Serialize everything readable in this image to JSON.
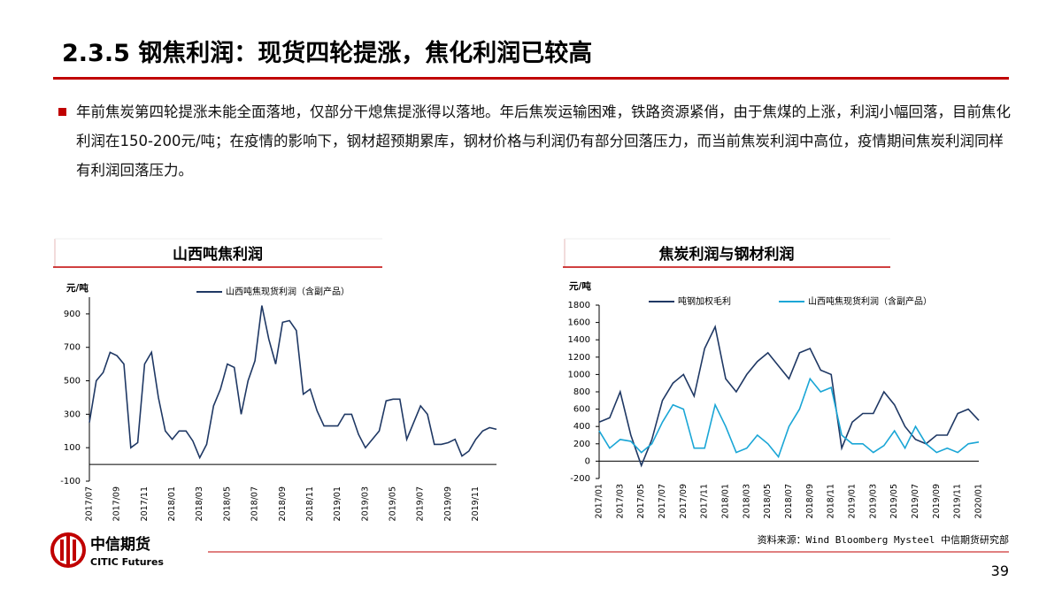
{
  "header": {
    "title": "2.3.5 钢焦利润：现货四轮提涨，焦化利润已较高"
  },
  "bullet": {
    "text": "年前焦炭第四轮提涨未能全面落地，仅部分干熄焦提涨得以落地。年后焦炭运输困难，铁路资源紧俏，由于焦煤的上涨，利润小幅回落，目前焦化利润在150-200元/吨；在疫情的影响下，钢材超预期累库，钢材价格与利润仍有部分回落压力，而当前焦炭利润中高位，疫情期间焦炭利润同样有利润回落压力。"
  },
  "chart_data": [
    {
      "type": "line",
      "title": "山西吨焦利润",
      "y_label": "元/吨",
      "categories": [
        "2017/07",
        null,
        null,
        null,
        "2017/09",
        null,
        null,
        null,
        "2017/11",
        null,
        null,
        null,
        "2018/01",
        null,
        null,
        null,
        "2018/03",
        null,
        null,
        null,
        "2018/05",
        null,
        null,
        null,
        "2018/07",
        null,
        null,
        null,
        "2018/09",
        null,
        null,
        null,
        "2018/11",
        null,
        null,
        null,
        "2019/01",
        null,
        null,
        null,
        "2019/03",
        null,
        null,
        null,
        "2019/05",
        null,
        null,
        null,
        "2019/07",
        null,
        null,
        null,
        "2019/09",
        null,
        null,
        null,
        "2019/11",
        null,
        null,
        null
      ],
      "series": [
        {
          "name": "山西吨焦现货利润（含副产品）",
          "color": "#1f3864",
          "values": [
            250,
            500,
            550,
            670,
            650,
            600,
            100,
            130,
            600,
            670,
            400,
            200,
            150,
            200,
            200,
            140,
            40,
            120,
            350,
            450,
            600,
            580,
            300,
            500,
            620,
            950,
            750,
            600,
            850,
            860,
            800,
            420,
            450,
            320,
            230,
            230,
            230,
            300,
            300,
            180,
            100,
            150,
            200,
            380,
            390,
            390,
            150,
            250,
            350,
            300,
            120,
            120,
            130,
            150,
            50,
            80,
            150,
            200,
            220,
            210
          ]
        }
      ],
      "ylim": [
        -100,
        1000
      ],
      "yticks": [
        -100,
        100,
        300,
        500,
        700,
        900
      ],
      "grid": false
    },
    {
      "type": "line",
      "title": "焦炭利润与钢材利润",
      "y_label": "元/吨",
      "categories": [
        "2017/01",
        null,
        "2017/03",
        null,
        "2017/05",
        null,
        "2017/07",
        null,
        "2017/09",
        null,
        "2017/11",
        null,
        "2018/01",
        null,
        "2018/03",
        null,
        "2018/05",
        null,
        "2018/07",
        null,
        "2018/09",
        null,
        "2018/11",
        null,
        "2019/01",
        null,
        "2019/03",
        null,
        "2019/05",
        null,
        "2019/07",
        null,
        "2019/09",
        null,
        "2019/11",
        null,
        "2020/01"
      ],
      "series": [
        {
          "name": "吨钢加权毛利",
          "color": "#1f3864",
          "values": [
            450,
            500,
            800,
            300,
            -50,
            250,
            700,
            900,
            1000,
            750,
            1300,
            1550,
            950,
            800,
            1000,
            1150,
            1250,
            1100,
            950,
            1250,
            1300,
            1050,
            1000,
            150,
            450,
            550,
            550,
            800,
            650,
            400,
            250,
            200,
            300,
            300,
            550,
            600,
            470
          ]
        },
        {
          "name": "山西吨焦现货利润（含副产品）",
          "color": "#1aa6d6",
          "values": [
            350,
            150,
            250,
            230,
            100,
            200,
            450,
            650,
            600,
            150,
            150,
            650,
            400,
            100,
            150,
            300,
            200,
            50,
            400,
            600,
            950,
            800,
            850,
            300,
            200,
            200,
            100,
            180,
            350,
            150,
            400,
            200,
            100,
            150,
            100,
            200,
            220
          ]
        }
      ],
      "ylim": [
        -200,
        1800
      ],
      "yticks": [
        -200,
        0,
        200,
        400,
        600,
        800,
        1000,
        1200,
        1400,
        1600,
        1800
      ],
      "grid": false
    }
  ],
  "source": "资料来源：Wind Bloomberg Mysteel 中信期货研究部",
  "logo": {
    "cn": "中信期货",
    "en": "CITIC Futures"
  },
  "page_number": 39
}
